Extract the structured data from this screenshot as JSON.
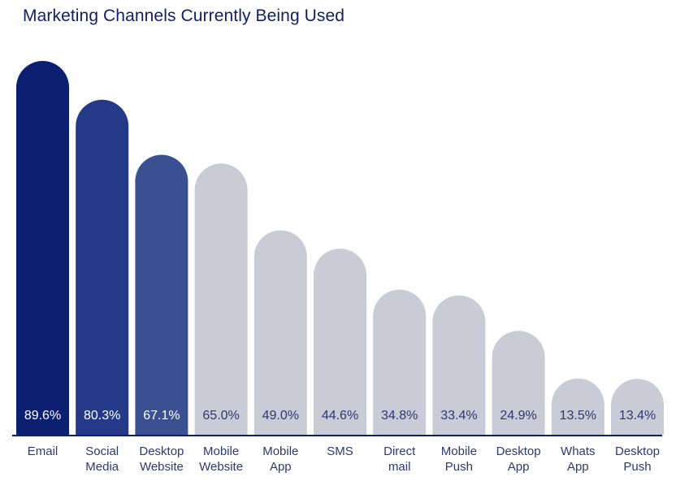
{
  "chart_data": {
    "type": "bar",
    "title": "Marketing Channels Currently Being Used",
    "categories": [
      [
        "Email"
      ],
      [
        "Social",
        "Media"
      ],
      [
        "Desktop",
        "Website"
      ],
      [
        "Mobile",
        "Website"
      ],
      [
        "Mobile",
        "App"
      ],
      [
        "SMS"
      ],
      [
        "Direct",
        "mail"
      ],
      [
        "Mobile",
        "Push"
      ],
      [
        "Desktop",
        "App"
      ],
      [
        "Whats",
        "App"
      ],
      [
        "Desktop",
        "Push"
      ]
    ],
    "values": [
      89.6,
      80.3,
      67.1,
      65.0,
      49.0,
      44.6,
      34.8,
      33.4,
      24.9,
      13.5,
      13.4
    ],
    "value_labels": [
      "89.6%",
      "80.3%",
      "67.1%",
      "65.0%",
      "49.0%",
      "44.6%",
      "34.8%",
      "33.4%",
      "24.9%",
      "13.5%",
      "13.4%"
    ],
    "ylim": [
      0,
      100
    ],
    "grid": false,
    "legend": "none",
    "colors": {
      "bars": [
        "#0c1f70",
        "#243a88",
        "#3b5091",
        "#c9ccd6",
        "#c9ccd6",
        "#c9ccd6",
        "#c9ccd6",
        "#c9ccd6",
        "#c9ccd6",
        "#c9ccd6",
        "#c9ccd6"
      ],
      "label_on_dark": "#ffffff",
      "label_on_light": "#2b3a72",
      "axis": "#0c1f70",
      "title": "#0e1f66"
    }
  }
}
